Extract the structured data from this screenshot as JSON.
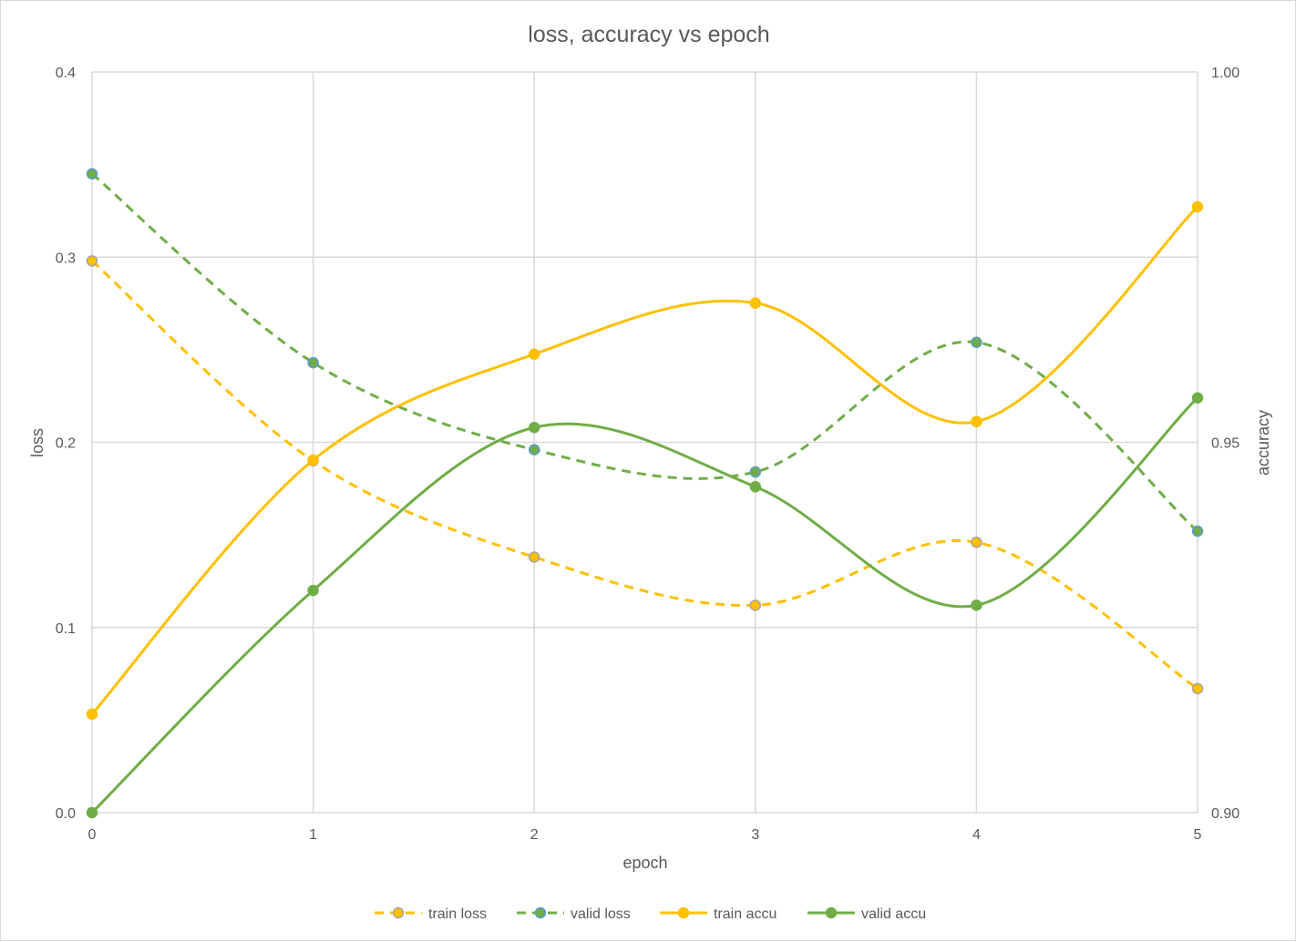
{
  "chart_data": {
    "type": "line",
    "title": "loss, accuracy vs epoch",
    "xlabel": "epoch",
    "ylabel": "loss",
    "y2label": "accuracy",
    "x": [
      0,
      1,
      2,
      3,
      4,
      5
    ],
    "x_tick_labels": [
      "0",
      "1",
      "2",
      "3",
      "4",
      "5"
    ],
    "ylim": [
      0.0,
      0.4
    ],
    "y_tick_labels": [
      "0.0",
      "0.1",
      "0.2",
      "0.3",
      "0.4"
    ],
    "y2lim": [
      0.9,
      1.0
    ],
    "y2_tick_labels": [
      "0.90",
      "0.95",
      "1.00"
    ],
    "grid": true,
    "smooth": true,
    "legend_position": "bottom",
    "series": [
      {
        "name": "train loss",
        "axis": "left",
        "values": [
          0.298,
          0.19,
          0.138,
          0.112,
          0.146,
          0.067
        ],
        "color": "#FFC000",
        "marker_edge": "#A5A5A5",
        "dashed": true
      },
      {
        "name": "valid loss",
        "axis": "left",
        "values": [
          0.345,
          0.243,
          0.196,
          0.184,
          0.254,
          0.152
        ],
        "color": "#70AD47",
        "marker_edge": "#5B9BD5",
        "dashed": true
      },
      {
        "name": "train accu",
        "axis": "right",
        "values": [
          0.9133,
          0.9476,
          0.9619,
          0.9688,
          0.9528,
          0.9818
        ],
        "color": "#FFC000",
        "marker_edge": "#FFC000",
        "dashed": false
      },
      {
        "name": "valid accu",
        "axis": "right",
        "values": [
          0.9,
          0.93,
          0.952,
          0.944,
          0.928,
          0.956
        ],
        "color": "#70AD47",
        "marker_edge": "#70AD47",
        "dashed": false
      }
    ]
  }
}
